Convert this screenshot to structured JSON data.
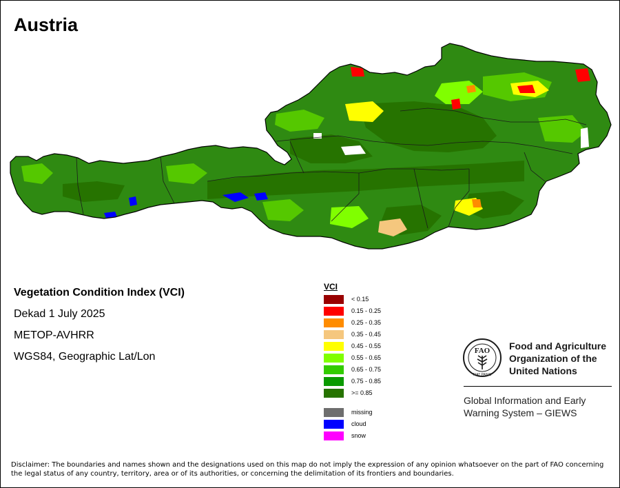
{
  "title": "Austria",
  "info": {
    "line1": "Vegetation Condition Index (VCI)",
    "line2": "Dekad 1 July 2025",
    "line3": "METOP-AVHRR",
    "line4": "WGS84, Geographic Lat/Lon"
  },
  "legend": {
    "title": "VCI",
    "classes": [
      {
        "label": "< 0.15",
        "color": "#990000"
      },
      {
        "label": "0.15 - 0.25",
        "color": "#ff0000"
      },
      {
        "label": "0.25 - 0.35",
        "color": "#ff8c00"
      },
      {
        "label": "0.35 - 0.45",
        "color": "#f5c77e"
      },
      {
        "label": "0.45 - 0.55",
        "color": "#ffff00"
      },
      {
        "label": "0.55 - 0.65",
        "color": "#80ff00"
      },
      {
        "label": "0.65 - 0.75",
        "color": "#33cc00"
      },
      {
        "label": "0.75 - 0.85",
        "color": "#0a9a00"
      },
      {
        "label": ">= 0.85",
        "color": "#267300"
      }
    ],
    "extra": [
      {
        "label": "missing",
        "color": "#6e6e6e"
      },
      {
        "label": "cloud",
        "color": "#0000ff"
      },
      {
        "label": "snow",
        "color": "#ff00ff"
      }
    ]
  },
  "fao": {
    "logo_letters": "FAO",
    "logo_motto": "FIAT PANIS",
    "name_line1": "Food and Agriculture",
    "name_line2": "Organization of the",
    "name_line3": "United Nations",
    "giews_line1": "Global Information and Early",
    "giews_line2": "Warning System – GIEWS"
  },
  "disclaimer": "Disclaimer: The boundaries and names shown and the designations used on this map do not imply the expression of any opinion whatsoever on the part of FAO concerning the legal status of any country, territory, area or of its authorities, or concerning the delimitation of its frontiers and boundaries.",
  "colors": {
    "base_green": "#2f8a12",
    "dark_green": "#267300",
    "country_outline": "#000000"
  }
}
